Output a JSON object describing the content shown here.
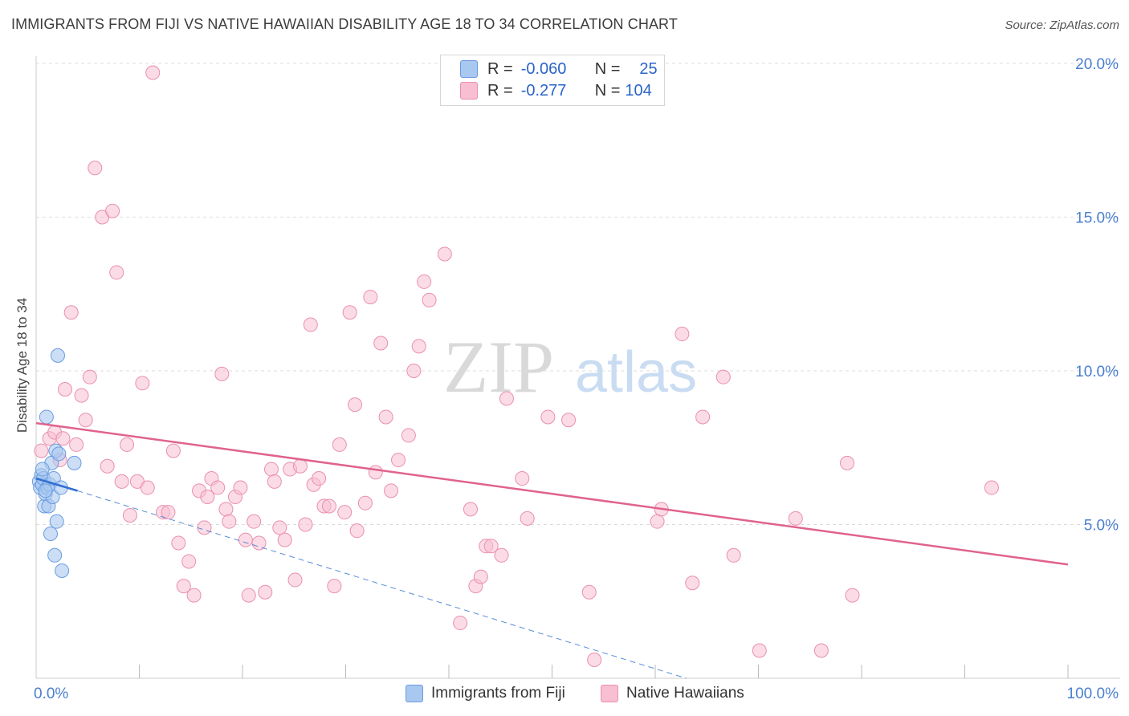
{
  "title": "IMMIGRANTS FROM FIJI VS NATIVE HAWAIIAN DISABILITY AGE 18 TO 34 CORRELATION CHART",
  "source": "Source: ZipAtlas.com",
  "watermark": {
    "zip": "ZIP",
    "atlas": "atlas"
  },
  "legend": {
    "fiji": {
      "r_label": "R =",
      "r_value": "-0.060",
      "n_label": "N =",
      "n_value": "25"
    },
    "hawaiian": {
      "r_label": "R =",
      "r_value": "-0.277",
      "n_label": "N =",
      "n_value": "104"
    }
  },
  "bottom_legend": {
    "fiji": "Immigrants from Fiji",
    "hawaiian": "Native Hawaiians"
  },
  "colors": {
    "fiji_fill": "#a9c8f0",
    "fiji_stroke": "#6b9be0",
    "fiji_line": "#2f6fd0",
    "hawaiian_fill": "#f7bfd1",
    "hawaiian_stroke": "#ea8fae",
    "hawaiian_line": "#e0638d"
  },
  "chart_data": {
    "type": "scatter",
    "title": "IMMIGRANTS FROM FIJI VS NATIVE HAWAIIAN DISABILITY AGE 18 TO 34 CORRELATION CHART",
    "xlabel": "",
    "ylabel": "Disability Age 18 to 34",
    "xlim": [
      0,
      100
    ],
    "ylim": [
      0,
      20.5
    ],
    "x_tick_labels": [
      "0.0%",
      "100.0%"
    ],
    "y_ticks": [
      5,
      10,
      15,
      20
    ],
    "y_tick_labels": [
      "5.0%",
      "10.0%",
      "15.0%",
      "20.0%"
    ],
    "series": [
      {
        "name": "Immigrants from Fiji",
        "R": -0.06,
        "N": 25,
        "trend": {
          "x0": 0.0,
          "y0": 6.5,
          "x1": 4.0,
          "y1": 6.1
        },
        "trend_ext": {
          "x0": 4.0,
          "y0": 6.1,
          "x1": 63.0,
          "y1": 0.0
        },
        "points": [
          [
            0.3,
            6.4
          ],
          [
            0.4,
            6.2
          ],
          [
            0.5,
            6.6
          ],
          [
            0.6,
            6.3
          ],
          [
            0.7,
            6.5
          ],
          [
            0.8,
            5.6
          ],
          [
            0.9,
            6.0
          ],
          [
            1.0,
            8.5
          ],
          [
            1.1,
            6.2
          ],
          [
            1.2,
            5.6
          ],
          [
            1.3,
            6.3
          ],
          [
            1.4,
            4.7
          ],
          [
            1.5,
            7.0
          ],
          [
            1.6,
            5.9
          ],
          [
            1.7,
            6.5
          ],
          [
            1.8,
            4.0
          ],
          [
            1.9,
            7.4
          ],
          [
            2.0,
            5.1
          ],
          [
            2.1,
            10.5
          ],
          [
            2.2,
            7.3
          ],
          [
            2.4,
            6.2
          ],
          [
            2.5,
            3.5
          ],
          [
            3.7,
            7.0
          ],
          [
            0.6,
            6.8
          ],
          [
            0.9,
            6.1
          ]
        ]
      },
      {
        "name": "Native Hawaiians",
        "R": -0.277,
        "N": 104,
        "trend": {
          "x0": 0.0,
          "y0": 8.3,
          "x1": 100.0,
          "y1": 3.7
        },
        "points": [
          [
            0.5,
            7.4
          ],
          [
            1.3,
            7.8
          ],
          [
            1.8,
            8.0
          ],
          [
            2.3,
            7.1
          ],
          [
            2.6,
            7.8
          ],
          [
            2.8,
            9.4
          ],
          [
            3.4,
            11.9
          ],
          [
            3.9,
            7.6
          ],
          [
            4.4,
            9.2
          ],
          [
            4.8,
            8.4
          ],
          [
            5.2,
            9.8
          ],
          [
            5.7,
            16.6
          ],
          [
            6.4,
            15.0
          ],
          [
            6.9,
            6.9
          ],
          [
            7.4,
            15.2
          ],
          [
            7.8,
            13.2
          ],
          [
            8.3,
            6.4
          ],
          [
            8.8,
            7.6
          ],
          [
            9.1,
            5.3
          ],
          [
            9.8,
            6.4
          ],
          [
            10.3,
            9.6
          ],
          [
            10.8,
            6.2
          ],
          [
            11.3,
            19.7
          ],
          [
            12.3,
            5.4
          ],
          [
            12.8,
            5.4
          ],
          [
            13.3,
            7.4
          ],
          [
            13.8,
            4.4
          ],
          [
            14.3,
            3.0
          ],
          [
            14.8,
            3.8
          ],
          [
            15.3,
            2.7
          ],
          [
            15.8,
            6.1
          ],
          [
            16.3,
            4.9
          ],
          [
            16.6,
            5.9
          ],
          [
            17.0,
            6.5
          ],
          [
            17.6,
            6.2
          ],
          [
            18.0,
            9.9
          ],
          [
            18.4,
            5.5
          ],
          [
            18.7,
            5.1
          ],
          [
            19.3,
            5.9
          ],
          [
            19.8,
            6.2
          ],
          [
            20.3,
            4.5
          ],
          [
            20.6,
            2.7
          ],
          [
            21.1,
            5.1
          ],
          [
            21.6,
            4.4
          ],
          [
            22.2,
            2.8
          ],
          [
            22.8,
            6.8
          ],
          [
            23.1,
            6.4
          ],
          [
            23.6,
            4.9
          ],
          [
            24.1,
            4.5
          ],
          [
            24.6,
            6.8
          ],
          [
            25.1,
            3.2
          ],
          [
            25.6,
            6.9
          ],
          [
            26.1,
            5.0
          ],
          [
            26.6,
            11.5
          ],
          [
            26.9,
            6.3
          ],
          [
            27.4,
            6.5
          ],
          [
            27.9,
            5.6
          ],
          [
            28.4,
            5.6
          ],
          [
            28.9,
            3.0
          ],
          [
            29.4,
            7.6
          ],
          [
            29.9,
            5.4
          ],
          [
            30.4,
            11.9
          ],
          [
            30.9,
            8.9
          ],
          [
            31.1,
            4.8
          ],
          [
            31.9,
            5.7
          ],
          [
            32.4,
            12.4
          ],
          [
            32.9,
            6.7
          ],
          [
            33.4,
            10.9
          ],
          [
            33.9,
            8.5
          ],
          [
            34.4,
            6.1
          ],
          [
            35.1,
            7.1
          ],
          [
            36.1,
            7.9
          ],
          [
            36.6,
            10.0
          ],
          [
            37.1,
            10.8
          ],
          [
            37.6,
            12.9
          ],
          [
            38.1,
            12.3
          ],
          [
            39.6,
            13.8
          ],
          [
            41.1,
            1.8
          ],
          [
            42.1,
            5.5
          ],
          [
            42.6,
            3.0
          ],
          [
            43.1,
            3.3
          ],
          [
            43.6,
            4.3
          ],
          [
            44.1,
            4.3
          ],
          [
            45.1,
            4.0
          ],
          [
            45.6,
            9.1
          ],
          [
            47.1,
            6.5
          ],
          [
            47.6,
            5.2
          ],
          [
            49.6,
            8.5
          ],
          [
            51.6,
            8.4
          ],
          [
            53.6,
            2.8
          ],
          [
            54.1,
            0.6
          ],
          [
            60.2,
            5.1
          ],
          [
            60.6,
            5.5
          ],
          [
            62.6,
            11.2
          ],
          [
            63.6,
            3.1
          ],
          [
            64.6,
            8.5
          ],
          [
            66.6,
            9.8
          ],
          [
            67.6,
            4.0
          ],
          [
            70.1,
            0.9
          ],
          [
            73.6,
            5.2
          ],
          [
            76.1,
            0.9
          ],
          [
            78.6,
            7.0
          ],
          [
            79.1,
            2.7
          ],
          [
            92.6,
            6.2
          ]
        ]
      }
    ]
  }
}
